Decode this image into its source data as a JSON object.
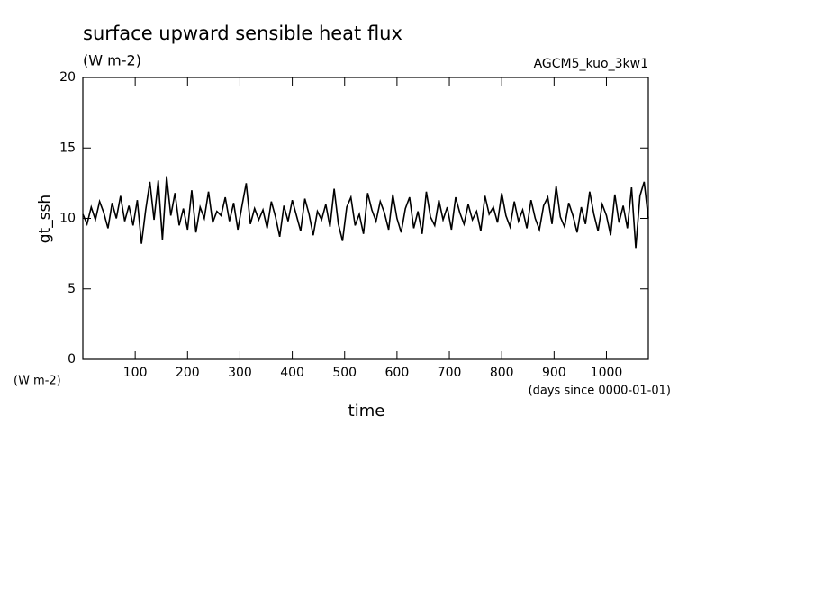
{
  "chart_data": {
    "type": "line",
    "title": "surface upward sensible heat flux",
    "subtitle": "(W m-2)",
    "annotation": "AGCM5_kuo_3kw1",
    "y_label": "gt_ssh",
    "y_units": "(W m-2)",
    "x_label": "time",
    "x_units": "(days since 0000-01-01)",
    "xlim": [
      0,
      1080
    ],
    "ylim": [
      0,
      20
    ],
    "xticks": [
      100,
      200,
      300,
      400,
      500,
      600,
      700,
      800,
      900,
      1000
    ],
    "yticks": [
      0,
      5,
      10,
      15,
      20
    ],
    "grid": false,
    "series": [
      {
        "color": "#000000",
        "x": [
          0,
          8,
          16,
          24,
          32,
          40,
          48,
          56,
          64,
          72,
          80,
          88,
          96,
          104,
          112,
          120,
          128,
          136,
          144,
          152,
          160,
          168,
          176,
          184,
          192,
          200,
          208,
          216,
          224,
          232,
          240,
          248,
          256,
          264,
          272,
          280,
          288,
          296,
          304,
          312,
          320,
          328,
          336,
          344,
          352,
          360,
          368,
          376,
          384,
          392,
          400,
          408,
          416,
          424,
          432,
          440,
          448,
          456,
          464,
          472,
          480,
          488,
          496,
          504,
          512,
          520,
          528,
          536,
          544,
          552,
          560,
          568,
          576,
          584,
          592,
          600,
          608,
          616,
          624,
          632,
          640,
          648,
          656,
          664,
          672,
          680,
          688,
          696,
          704,
          712,
          720,
          728,
          736,
          744,
          752,
          760,
          768,
          776,
          784,
          792,
          800,
          808,
          816,
          824,
          832,
          840,
          848,
          856,
          864,
          872,
          880,
          888,
          896,
          904,
          912,
          920,
          928,
          936,
          944,
          952,
          960,
          968,
          976,
          984,
          992,
          1000,
          1008,
          1016,
          1024,
          1032,
          1040,
          1048,
          1056,
          1064,
          1072,
          1080
        ],
        "values": [
          10.3,
          9.6,
          10.8,
          9.9,
          11.2,
          10.4,
          9.3,
          11.1,
          10.0,
          11.6,
          9.8,
          10.9,
          9.5,
          11.3,
          8.2,
          10.6,
          12.6,
          9.9,
          12.7,
          8.5,
          13.0,
          10.2,
          11.8,
          9.5,
          10.7,
          9.2,
          12.0,
          9.0,
          10.8,
          10.0,
          11.9,
          9.7,
          10.5,
          10.2,
          11.5,
          9.8,
          11.1,
          9.2,
          10.9,
          12.5,
          9.6,
          10.7,
          9.9,
          10.6,
          9.3,
          11.2,
          10.1,
          8.7,
          10.9,
          9.8,
          11.3,
          10.2,
          9.1,
          11.4,
          10.3,
          8.8,
          10.5,
          9.9,
          11.0,
          9.4,
          12.1,
          9.6,
          8.4,
          10.8,
          11.5,
          9.5,
          10.3,
          8.9,
          11.8,
          10.6,
          9.8,
          11.2,
          10.4,
          9.2,
          11.7,
          10.0,
          9.0,
          10.7,
          11.5,
          9.3,
          10.5,
          8.9,
          11.9,
          10.1,
          9.5,
          11.3,
          9.9,
          10.8,
          9.2,
          11.5,
          10.4,
          9.6,
          11.0,
          9.9,
          10.5,
          9.1,
          11.6,
          10.3,
          10.8,
          9.7,
          11.8,
          10.2,
          9.4,
          11.2,
          9.8,
          10.6,
          9.3,
          11.3,
          10.0,
          9.2,
          10.9,
          11.5,
          9.6,
          12.3,
          10.1,
          9.4,
          11.1,
          10.2,
          9.0,
          10.8,
          9.6,
          11.9,
          10.3,
          9.1,
          11.0,
          10.2,
          8.8,
          11.7,
          9.7,
          10.9,
          9.3,
          12.2,
          7.9,
          11.6,
          12.6,
          10.0
        ]
      }
    ]
  }
}
